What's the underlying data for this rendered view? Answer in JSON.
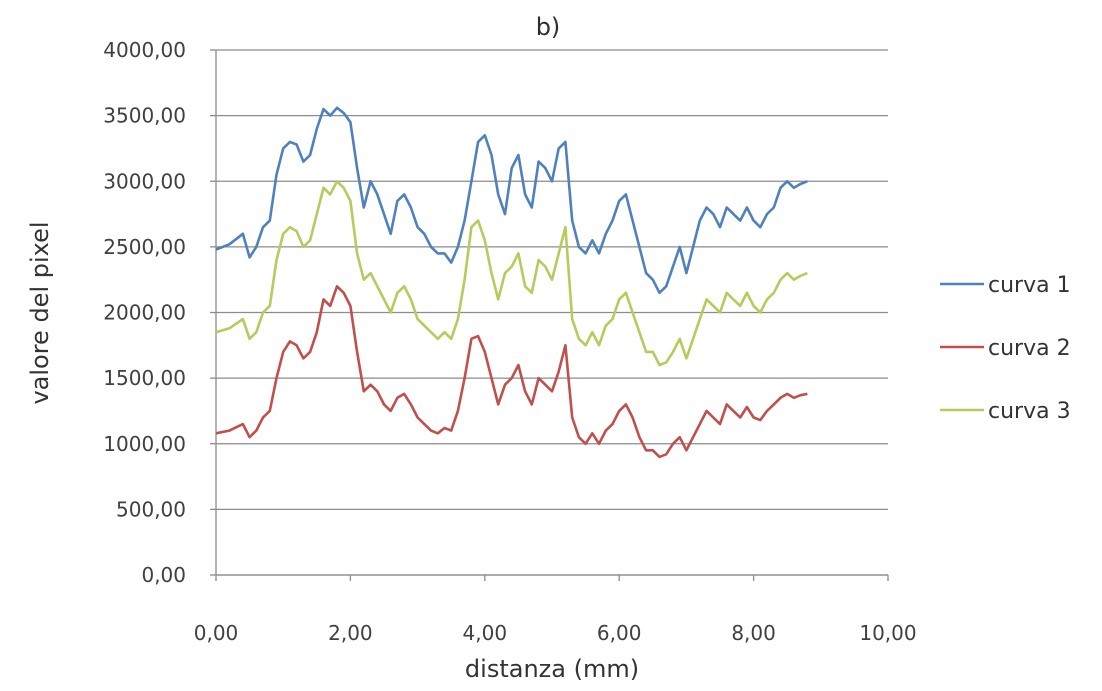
{
  "chart_data": {
    "type": "line",
    "title": "b)",
    "xlabel": "distanza (mm)",
    "ylabel": "valore del pixel",
    "xlim": [
      0,
      10
    ],
    "ylim": [
      0,
      4000
    ],
    "x_ticks": [
      "0,00",
      "2,00",
      "4,00",
      "6,00",
      "8,00",
      "10,00"
    ],
    "y_ticks": [
      "0,00",
      "500,00",
      "1000,00",
      "1500,00",
      "2000,00",
      "2500,00",
      "3000,00",
      "3500,00",
      "4000,00"
    ],
    "grid": "horizontal",
    "legend_position": "right",
    "x": [
      0.0,
      0.2,
      0.4,
      0.5,
      0.6,
      0.7,
      0.8,
      0.9,
      1.0,
      1.1,
      1.2,
      1.3,
      1.4,
      1.5,
      1.6,
      1.7,
      1.8,
      1.9,
      2.0,
      2.1,
      2.2,
      2.3,
      2.4,
      2.5,
      2.6,
      2.7,
      2.8,
      2.9,
      3.0,
      3.1,
      3.2,
      3.3,
      3.4,
      3.5,
      3.6,
      3.7,
      3.8,
      3.9,
      4.0,
      4.1,
      4.2,
      4.3,
      4.4,
      4.5,
      4.6,
      4.7,
      4.8,
      4.9,
      5.0,
      5.1,
      5.2,
      5.3,
      5.4,
      5.5,
      5.6,
      5.7,
      5.8,
      5.9,
      6.0,
      6.1,
      6.2,
      6.3,
      6.4,
      6.5,
      6.6,
      6.7,
      6.8,
      6.9,
      7.0,
      7.1,
      7.2,
      7.3,
      7.4,
      7.5,
      7.6,
      7.7,
      7.8,
      7.9,
      8.0,
      8.1,
      8.2,
      8.3,
      8.4,
      8.5,
      8.6,
      8.7,
      8.8
    ],
    "series": [
      {
        "name": "curva 1",
        "color": "#4f81bd",
        "values": [
          2480,
          2520,
          2600,
          2420,
          2500,
          2650,
          2700,
          3050,
          3250,
          3300,
          3280,
          3150,
          3200,
          3400,
          3550,
          3500,
          3560,
          3520,
          3450,
          3100,
          2800,
          3000,
          2900,
          2750,
          2600,
          2850,
          2900,
          2800,
          2650,
          2600,
          2500,
          2450,
          2450,
          2380,
          2500,
          2700,
          3000,
          3300,
          3350,
          3200,
          2900,
          2750,
          3100,
          3200,
          2900,
          2800,
          3150,
          3100,
          3000,
          3250,
          3300,
          2700,
          2500,
          2450,
          2550,
          2450,
          2600,
          2700,
          2850,
          2900,
          2700,
          2500,
          2300,
          2250,
          2150,
          2200,
          2350,
          2500,
          2300,
          2500,
          2700,
          2800,
          2750,
          2650,
          2800,
          2750,
          2700,
          2800,
          2700,
          2650,
          2750,
          2800,
          2950,
          3000,
          2950,
          2980,
          3000
        ]
      },
      {
        "name": "curva 2",
        "color": "#c0504d",
        "values": [
          1080,
          1100,
          1150,
          1050,
          1100,
          1200,
          1250,
          1500,
          1700,
          1780,
          1750,
          1650,
          1700,
          1850,
          2100,
          2050,
          2200,
          2150,
          2050,
          1700,
          1400,
          1450,
          1400,
          1300,
          1250,
          1350,
          1380,
          1300,
          1200,
          1150,
          1100,
          1080,
          1120,
          1100,
          1250,
          1500,
          1800,
          1820,
          1700,
          1500,
          1300,
          1450,
          1500,
          1600,
          1400,
          1300,
          1500,
          1450,
          1400,
          1550,
          1750,
          1200,
          1050,
          1000,
          1080,
          1000,
          1100,
          1150,
          1250,
          1300,
          1200,
          1050,
          950,
          950,
          900,
          920,
          1000,
          1050,
          950,
          1050,
          1150,
          1250,
          1200,
          1150,
          1300,
          1250,
          1200,
          1280,
          1200,
          1180,
          1250,
          1300,
          1350,
          1380,
          1350,
          1370,
          1380
        ]
      },
      {
        "name": "curva 3",
        "color": "#b5cc5d",
        "values": [
          1850,
          1880,
          1950,
          1800,
          1850,
          2000,
          2050,
          2400,
          2600,
          2650,
          2620,
          2500,
          2550,
          2750,
          2950,
          2900,
          3000,
          2950,
          2850,
          2450,
          2250,
          2300,
          2200,
          2100,
          2000,
          2150,
          2200,
          2100,
          1950,
          1900,
          1850,
          1800,
          1850,
          1800,
          1950,
          2250,
          2650,
          2700,
          2550,
          2300,
          2100,
          2300,
          2350,
          2450,
          2200,
          2150,
          2400,
          2350,
          2250,
          2450,
          2650,
          1950,
          1800,
          1750,
          1850,
          1750,
          1900,
          1950,
          2100,
          2150,
          2000,
          1850,
          1700,
          1700,
          1600,
          1620,
          1700,
          1800,
          1650,
          1800,
          1950,
          2100,
          2050,
          2000,
          2150,
          2100,
          2050,
          2150,
          2050,
          2000,
          2100,
          2150,
          2250,
          2300,
          2250,
          2280,
          2300
        ]
      }
    ]
  }
}
